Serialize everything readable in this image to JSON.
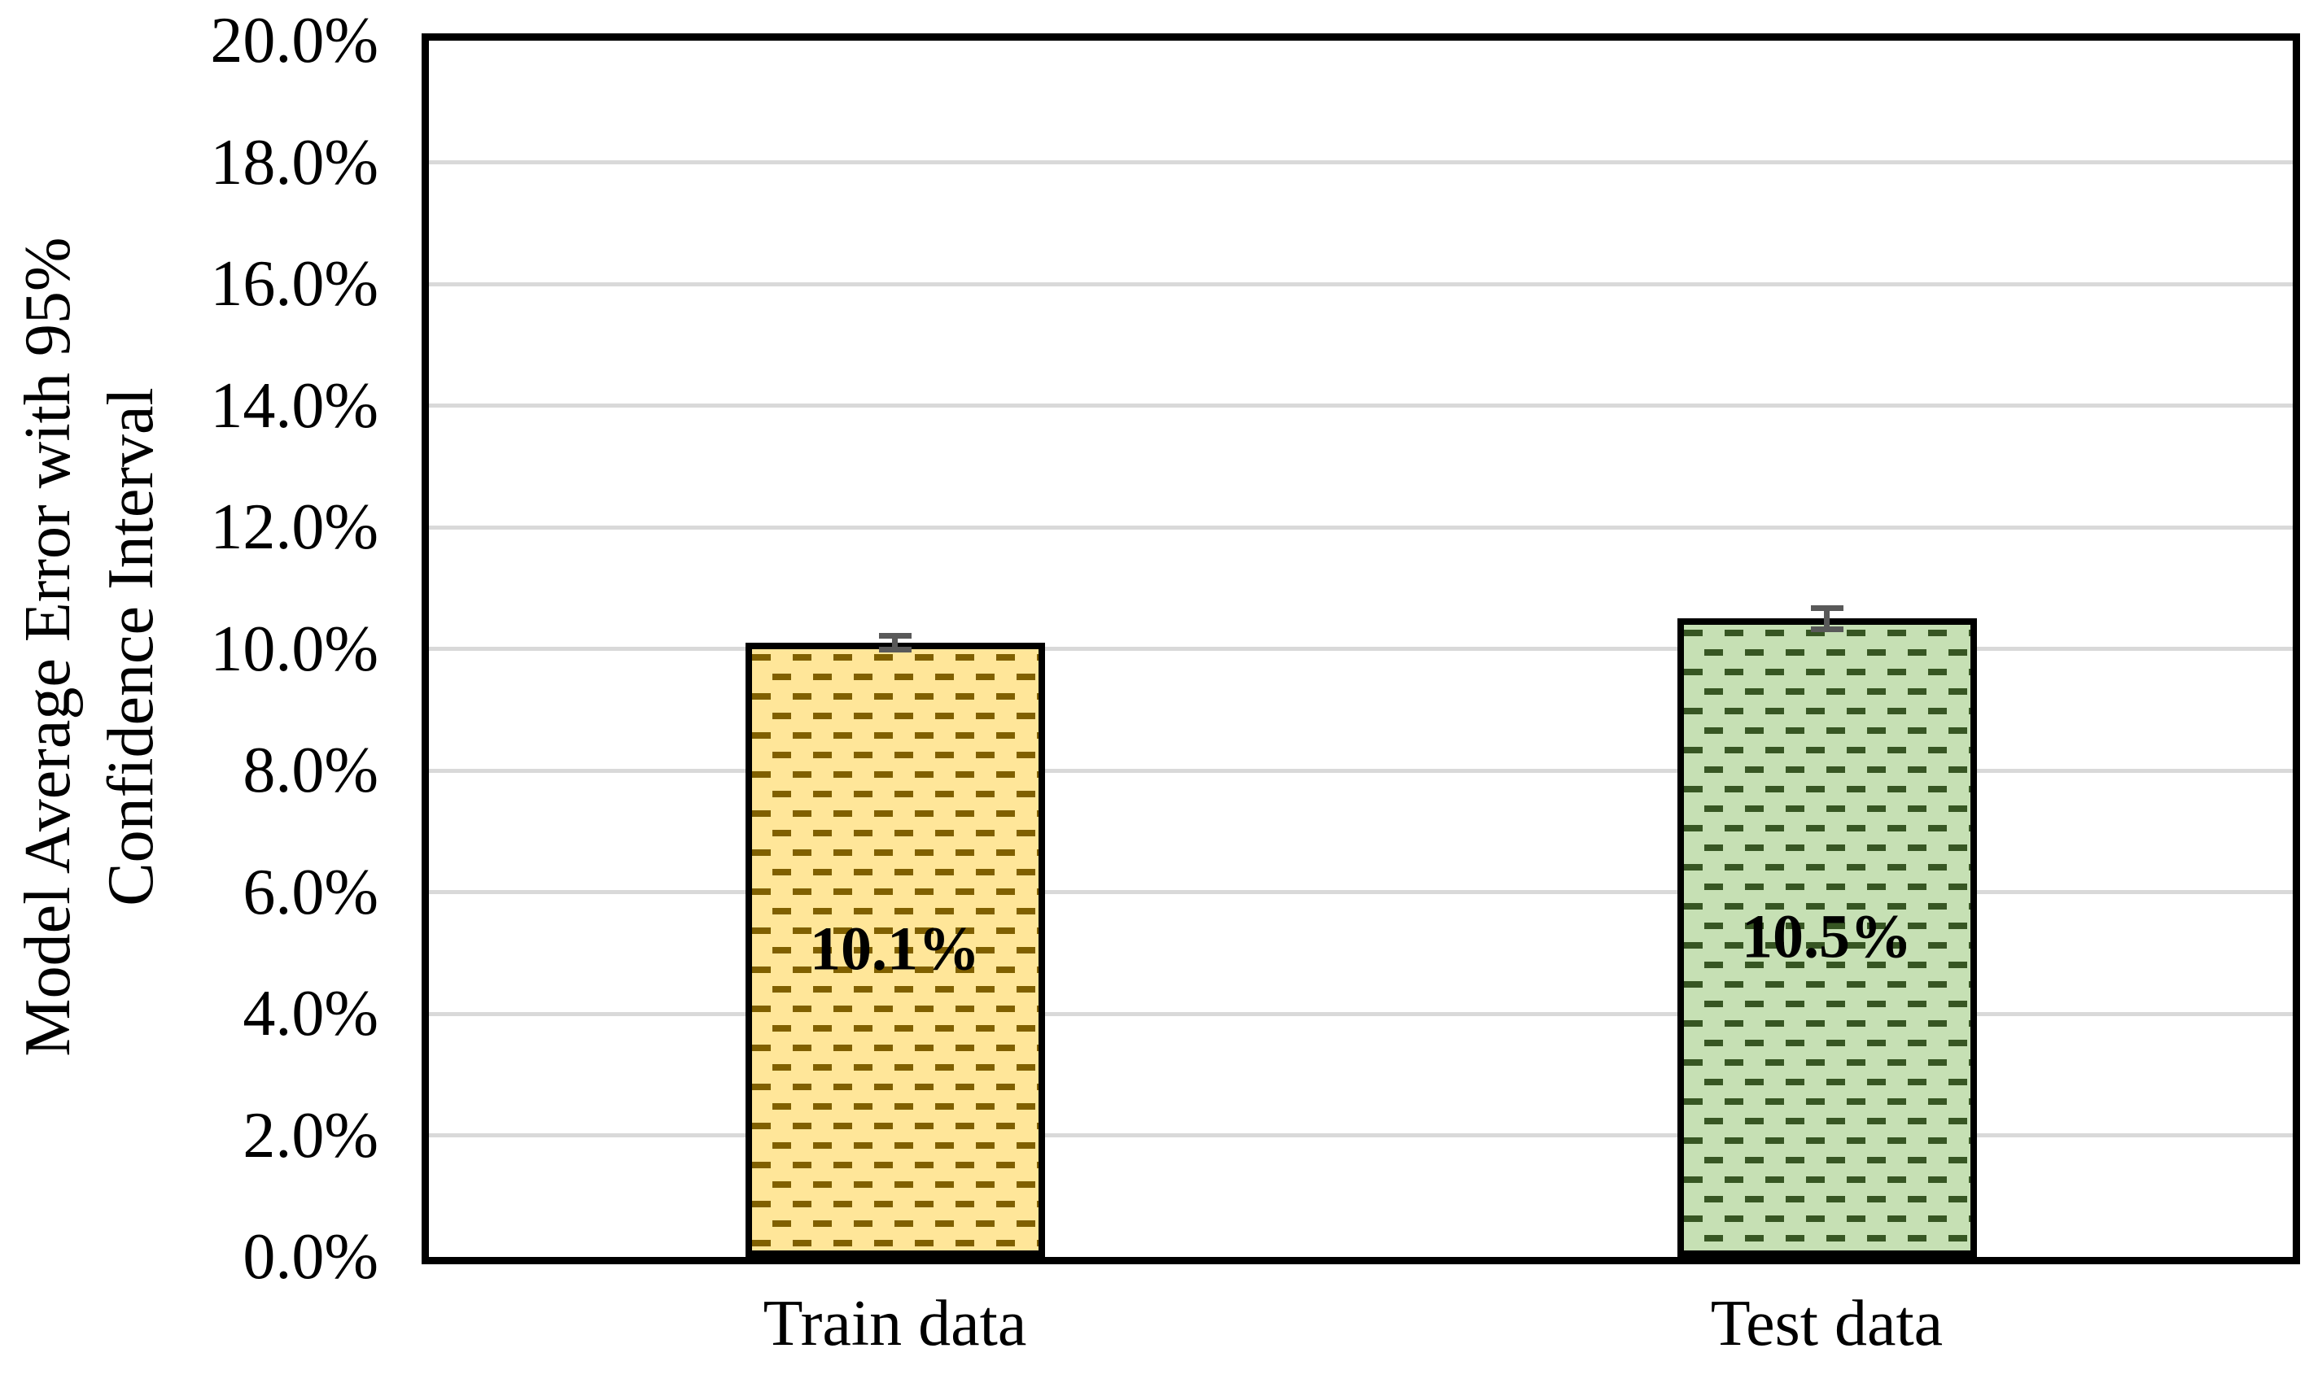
{
  "chart_data": {
    "type": "bar",
    "title": "",
    "y_axis_title_lines": [
      "Model Average Error with 95%",
      "Confidence Interval"
    ],
    "categories": [
      "Train data",
      "Test data"
    ],
    "values": [
      10.1,
      10.5
    ],
    "value_labels": [
      "10.1%",
      "10.5%"
    ],
    "errors_pp": [
      0.16,
      0.22
    ],
    "ylim": [
      0,
      20
    ],
    "ytick_step": 2,
    "yticks": [
      "0.0%",
      "2.0%",
      "4.0%",
      "6.0%",
      "8.0%",
      "10.0%",
      "12.0%",
      "14.0%",
      "16.0%",
      "18.0%",
      "20.0%"
    ],
    "grid": "horizontal",
    "legend_position": "none",
    "bar_styles": [
      {
        "name": "train-data",
        "fill": "#FFE699",
        "pattern_color": "#806000",
        "pattern": "dashed-horizontal"
      },
      {
        "name": "test-data",
        "fill": "#C6E0B4",
        "pattern_color": "#375623",
        "pattern": "dashed-horizontal"
      }
    ],
    "bar_border_color": "#000000",
    "error_bar_color": "#595959",
    "gridline_color": "#D9D9D9",
    "axis_frame_color": "#000000",
    "text_color": "#000000"
  }
}
